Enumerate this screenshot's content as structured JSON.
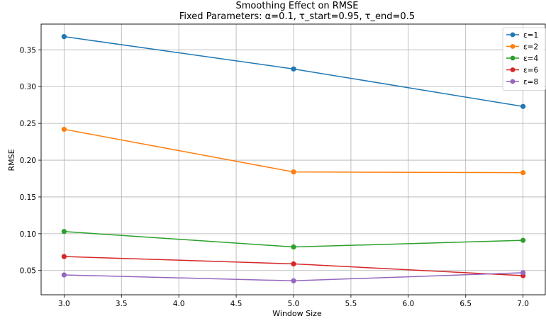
{
  "chart_data": {
    "type": "line",
    "title": "Smoothing Effect on RMSE",
    "subtitle": "Fixed Parameters: α=0.1, τ_start=0.95, τ_end=0.5",
    "xlabel": "Window Size",
    "ylabel": "RMSE",
    "xlim": [
      2.8,
      7.2
    ],
    "ylim": [
      0.017,
      0.385
    ],
    "xticks": [
      3.0,
      3.5,
      4.0,
      4.5,
      5.0,
      5.5,
      6.0,
      6.5,
      7.0
    ],
    "xtick_labels": [
      "3.0",
      "3.5",
      "4.0",
      "4.5",
      "5.0",
      "5.5",
      "6.0",
      "6.5",
      "7.0"
    ],
    "yticks": [
      0.05,
      0.1,
      0.15,
      0.2,
      0.25,
      0.3,
      0.35
    ],
    "ytick_labels": [
      "0.05",
      "0.10",
      "0.15",
      "0.20",
      "0.25",
      "0.30",
      "0.35"
    ],
    "grid": true,
    "legend_position": "top-right",
    "x": [
      3,
      5,
      7
    ],
    "series": [
      {
        "name": "ε=1",
        "color": "#1f77b4",
        "values": [
          0.368,
          0.324,
          0.273
        ]
      },
      {
        "name": "ε=2",
        "color": "#ff7f0e",
        "values": [
          0.242,
          0.184,
          0.183
        ]
      },
      {
        "name": "ε=4",
        "color": "#2ca02c",
        "values": [
          0.103,
          0.082,
          0.091
        ]
      },
      {
        "name": "ε=6",
        "color": "#d62728",
        "values": [
          0.069,
          0.059,
          0.043
        ]
      },
      {
        "name": "ε=8",
        "color": "#9467bd",
        "values": [
          0.044,
          0.036,
          0.047
        ]
      }
    ]
  }
}
